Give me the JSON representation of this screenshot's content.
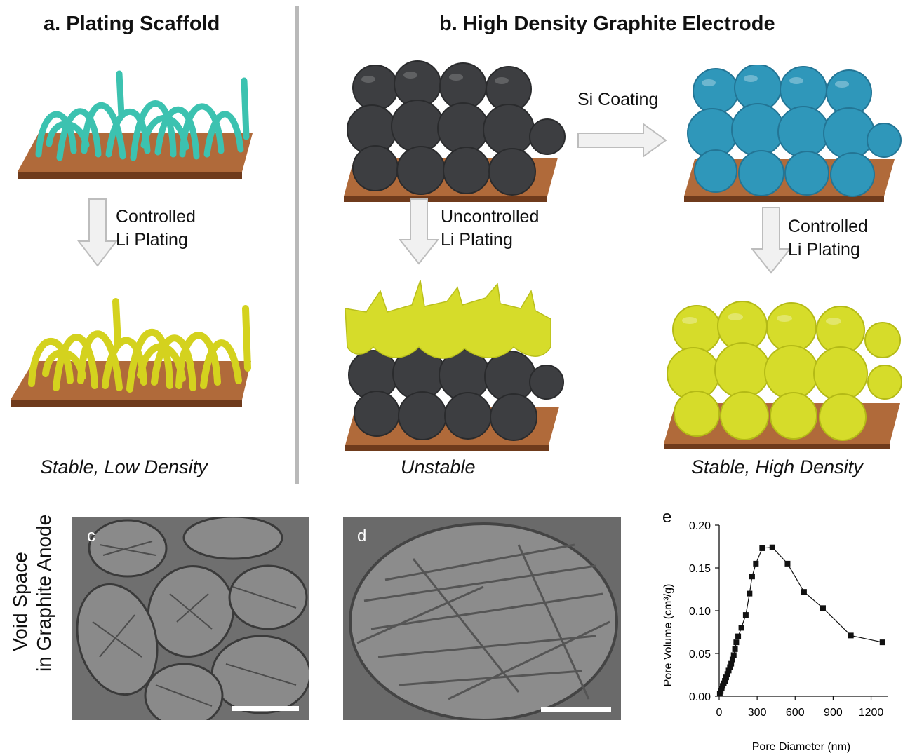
{
  "panel_a": {
    "title": "a. Plating Scaffold",
    "step_label_line1": "Controlled",
    "step_label_line2": "Li Plating",
    "caption": "Stable, Low Density",
    "colors": {
      "scaffold": "#3cc2b0",
      "plated": "#d4d21e",
      "substrate": "#9a5a31"
    }
  },
  "panel_b": {
    "title": "b. High Density Graphite Electrode",
    "coating_label": "Si Coating",
    "uncontrolled_line1": "Uncontrolled",
    "uncontrolled_line2": "Li Plating",
    "controlled_line1": "Controlled",
    "controlled_line2": "Li Plating",
    "caption_unstable": "Unstable",
    "caption_stable": "Stable, High Density",
    "colors": {
      "graphite": "#3d3e41",
      "si_coated": "#2f97ba",
      "lithium": "#d6dc2a",
      "substrate": "#9a5a31"
    }
  },
  "row_label": {
    "line1": "Void Space",
    "line2": "in Graphite Anode"
  },
  "panel_c": {
    "letter": "c"
  },
  "panel_d": {
    "letter": "d"
  },
  "panel_e": {
    "letter": "e",
    "chart_data": {
      "type": "line",
      "xlabel": "Pore Diameter (nm)",
      "ylabel": "Pore Volume (cm³/g)",
      "xlim": [
        0,
        1330
      ],
      "ylim": [
        0,
        0.2
      ],
      "xticks": [
        0,
        300,
        600,
        900,
        1200
      ],
      "yticks": [
        0.0,
        0.05,
        0.1,
        0.15,
        0.2
      ],
      "ytick_labels": [
        "0.00",
        "0.05",
        "0.10",
        "0.15",
        "0.20"
      ],
      "marker": "square",
      "x": [
        5,
        12,
        20,
        28,
        36,
        45,
        55,
        65,
        75,
        85,
        95,
        105,
        115,
        125,
        135,
        150,
        175,
        210,
        240,
        260,
        290,
        340,
        420,
        540,
        670,
        820,
        1040,
        1290
      ],
      "y": [
        0.003,
        0.006,
        0.009,
        0.012,
        0.015,
        0.018,
        0.022,
        0.026,
        0.03,
        0.034,
        0.038,
        0.043,
        0.048,
        0.055,
        0.063,
        0.07,
        0.08,
        0.095,
        0.12,
        0.14,
        0.155,
        0.173,
        0.174,
        0.155,
        0.122,
        0.103,
        0.071,
        0.063
      ]
    }
  }
}
